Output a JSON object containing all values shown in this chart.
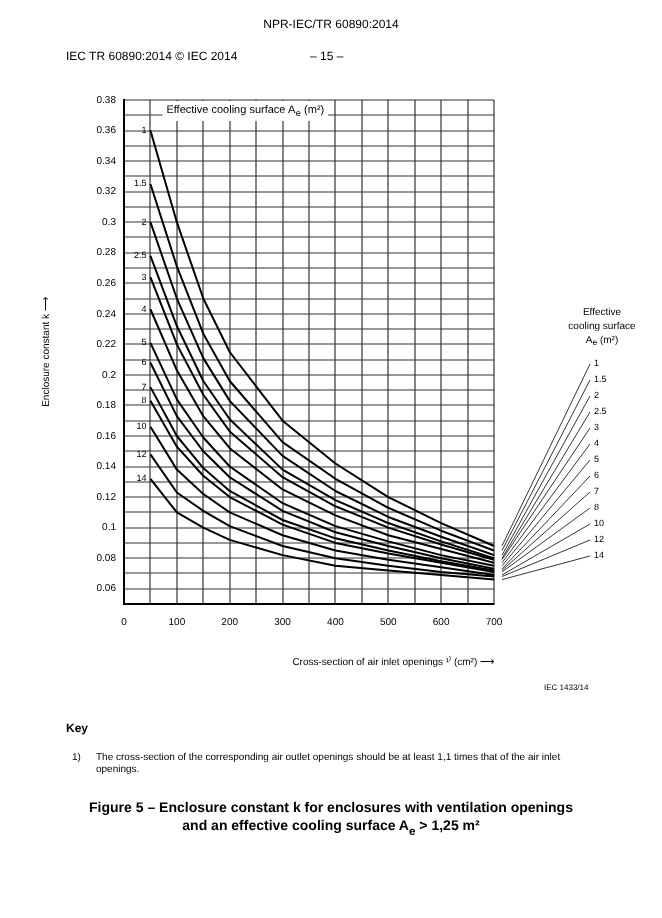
{
  "chart_data": {
    "type": "line",
    "title": "Figure 5 – Enclosure constant k for enclosures with ventilation openings and an effective cooling surface A$_{e}$ > 1,25 m²",
    "xlabel": "Cross-section of air inlet openings ¹⁾ (cm²) ⟶",
    "ylabel": "Enclosure constant k ⟶",
    "legend_title": "Effective cooling surface A$_{e}$ (m²)",
    "annotations": [
      "NPR-IEC/TR 60890:2014",
      "IEC TR 60890:2014 © IEC 2014",
      "– 15 –",
      "Effective cooling surface A$_{e}$ (m²)",
      "IEC 1433/14",
      "Key",
      "1)",
      "The cross-section of the corresponding air outlet openings should be at least 1,1 times that of the air inlet openings."
    ],
    "x": [
      50,
      100,
      150,
      200,
      300,
      400,
      500,
      600,
      700
    ],
    "series": [
      {
        "name": "1",
        "color": "#000000",
        "values": [
          0.36,
          0.3,
          0.25,
          0.215,
          0.17,
          0.142,
          0.12,
          0.103,
          0.088
        ]
      },
      {
        "name": "1.5",
        "color": "#000000",
        "values": [
          0.325,
          0.271,
          0.227,
          0.196,
          0.156,
          0.132,
          0.113,
          0.098,
          0.085
        ]
      },
      {
        "name": "2",
        "color": "#000000",
        "values": [
          0.3,
          0.25,
          0.211,
          0.183,
          0.147,
          0.124,
          0.107,
          0.094,
          0.082
        ]
      },
      {
        "name": "2.5",
        "color": "#000000",
        "values": [
          0.278,
          0.232,
          0.196,
          0.171,
          0.138,
          0.118,
          0.103,
          0.091,
          0.08
        ]
      },
      {
        "name": "3",
        "color": "#000000",
        "values": [
          0.264,
          0.22,
          0.187,
          0.163,
          0.133,
          0.114,
          0.1,
          0.089,
          0.079
        ]
      },
      {
        "name": "4",
        "color": "#000000",
        "values": [
          0.243,
          0.203,
          0.173,
          0.152,
          0.125,
          0.108,
          0.095,
          0.086,
          0.077
        ]
      },
      {
        "name": "5",
        "color": "#000000",
        "values": [
          0.221,
          0.184,
          0.159,
          0.14,
          0.116,
          0.101,
          0.091,
          0.082,
          0.075
        ]
      },
      {
        "name": "6",
        "color": "#000000",
        "values": [
          0.208,
          0.173,
          0.15,
          0.133,
          0.111,
          0.097,
          0.088,
          0.08,
          0.073
        ]
      },
      {
        "name": "7",
        "color": "#000000",
        "values": [
          0.192,
          0.16,
          0.139,
          0.124,
          0.105,
          0.093,
          0.085,
          0.078,
          0.072
        ]
      },
      {
        "name": "8",
        "color": "#000000",
        "values": [
          0.183,
          0.153,
          0.134,
          0.12,
          0.102,
          0.09,
          0.083,
          0.077,
          0.071
        ]
      },
      {
        "name": "10",
        "color": "#000000",
        "values": [
          0.166,
          0.138,
          0.122,
          0.11,
          0.095,
          0.085,
          0.079,
          0.074,
          0.069
        ]
      },
      {
        "name": "12",
        "color": "#000000",
        "values": [
          0.148,
          0.123,
          0.111,
          0.101,
          0.088,
          0.08,
          0.075,
          0.071,
          0.068
        ]
      },
      {
        "name": "14",
        "color": "#000000",
        "values": [
          0.132,
          0.11,
          0.1,
          0.092,
          0.082,
          0.075,
          0.072,
          0.069,
          0.066
        ]
      }
    ],
    "xlim": [
      0,
      700
    ],
    "xticks": [
      0,
      {
        "value": 50,
        "label": null
      },
      100,
      {
        "value": 150,
        "label": null
      },
      200,
      {
        "value": 250,
        "label": null
      },
      300,
      {
        "value": 350,
        "label": null
      },
      400,
      {
        "value": 450,
        "label": null
      },
      500,
      {
        "value": 550,
        "label": null
      },
      600,
      {
        "value": 650,
        "label": null
      },
      700
    ],
    "ylim": [
      0.05,
      0.38
    ],
    "yticks": [
      {
        "value": 0.05,
        "label": null
      },
      0.06,
      {
        "value": 0.07,
        "label": null
      },
      0.08,
      {
        "value": 0.09,
        "label": null
      },
      0.1,
      {
        "value": 0.11,
        "label": null
      },
      0.12,
      {
        "value": 0.13,
        "label": null
      },
      0.14,
      {
        "value": 0.15,
        "label": null
      },
      0.16,
      {
        "value": 0.17,
        "label": null
      },
      0.18,
      {
        "value": 0.19,
        "label": null
      },
      0.2,
      {
        "value": 0.21,
        "label": null
      },
      0.22,
      {
        "value": 0.23,
        "label": null
      },
      0.24,
      {
        "value": 0.25,
        "label": null
      },
      0.26,
      {
        "value": 0.27,
        "label": null
      },
      0.28,
      {
        "value": 0.29,
        "label": null
      },
      0.3,
      {
        "value": 0.31,
        "label": null
      },
      0.32,
      {
        "value": 0.33,
        "label": null
      },
      0.34,
      {
        "value": 0.35,
        "label": null
      },
      0.36,
      {
        "value": 0.37,
        "label": null
      },
      0.38
    ],
    "grid": true,
    "marker": "none",
    "line_style": "solid"
  }
}
